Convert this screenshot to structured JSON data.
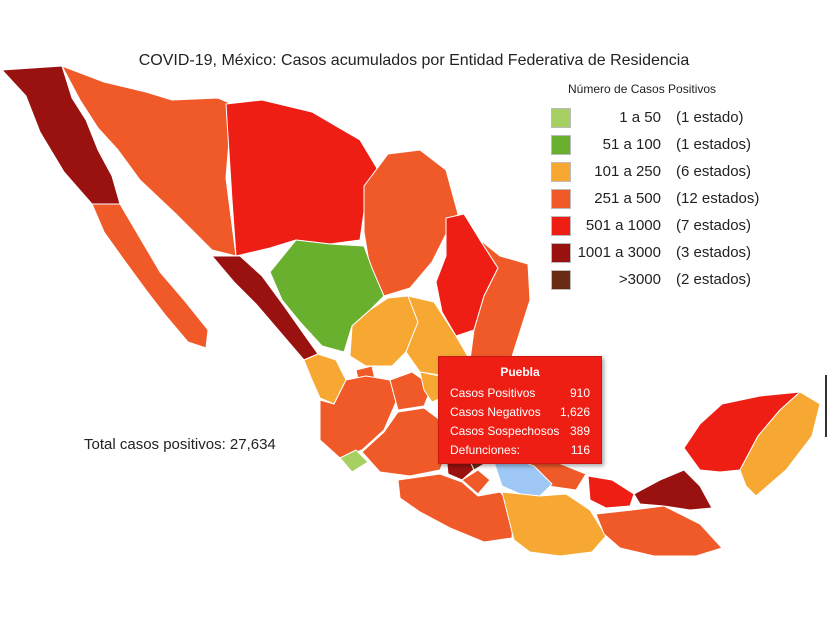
{
  "title": "COVID-19, México: Casos acumulados por Entidad Federativa de Residencia",
  "legend": {
    "title": "Número de Casos Positivos",
    "items": [
      {
        "range": "1 a 50",
        "count": "(1 estado)",
        "color": "#a7d062"
      },
      {
        "range": "51 a 100",
        "count": "(1 estados)",
        "color": "#6ab02f"
      },
      {
        "range": "101 a 250",
        "count": "(6 estados)",
        "color": "#f7a832"
      },
      {
        "range": "251 a 500",
        "count": "(12 estados)",
        "color": "#f05a28"
      },
      {
        "range": "501 a 1000",
        "count": "(7 estados)",
        "color": "#ef1e15"
      },
      {
        "range": "1001 a 3000",
        "count": "(3 estados)",
        "color": "#9a1210"
      },
      {
        "range": ">3000",
        "count": "(2 estados)",
        "color": "#6a2a14"
      }
    ]
  },
  "total": "Total casos positivos: 27,634",
  "tooltip": {
    "state": "Puebla",
    "rows": [
      {
        "label": "Casos Positivos",
        "value": "910"
      },
      {
        "label": "Casos Negativos",
        "value": "1,626"
      },
      {
        "label": "Casos Sospechosos",
        "value": "389"
      },
      {
        "label": "Defunciones:",
        "value": "116"
      }
    ]
  },
  "colors": {
    "bin_1_50": "#a7d062",
    "bin_51_100": "#6ab02f",
    "bin_101_250": "#f7a832",
    "bin_251_500": "#f05a28",
    "bin_501_1000": "#ef1e15",
    "bin_1001_3000": "#9a1210",
    "bin_gt_3000": "#6a2a14",
    "hover": "#9ec7f5"
  }
}
